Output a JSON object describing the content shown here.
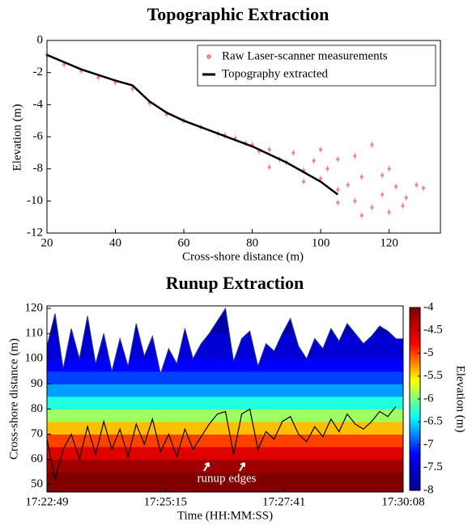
{
  "chart_data": [
    {
      "type": "line",
      "title": "Topographic Extraction",
      "xlabel": "Cross-shore distance (m)",
      "ylabel": "Elevation (m)",
      "xlim": [
        20,
        135
      ],
      "ylim": [
        -12,
        0
      ],
      "xticks": [
        20,
        40,
        60,
        80,
        100,
        120
      ],
      "yticks": [
        0,
        -2,
        -4,
        -6,
        -8,
        -10,
        -12
      ],
      "legend": "top-right",
      "series": [
        {
          "name": "Raw Laser-scanner measurements",
          "color": "#f4868a",
          "mode": "markers",
          "x": [
            20,
            25,
            30,
            35,
            40,
            45,
            50,
            55,
            60,
            65,
            70,
            72,
            75,
            78,
            80,
            82,
            85,
            88,
            90,
            92,
            95,
            98,
            100,
            100,
            102,
            105,
            105,
            108,
            110,
            110,
            112,
            115,
            115,
            118,
            120,
            120,
            122,
            125,
            128,
            130,
            85,
            95,
            105,
            112,
            118,
            124
          ],
          "values": [
            -0.9,
            -1.5,
            -1.9,
            -2.3,
            -2.6,
            -3.0,
            -3.9,
            -4.6,
            -5.0,
            -5.4,
            -5.8,
            -5.9,
            -6.1,
            -6.4,
            -6.5,
            -6.9,
            -6.8,
            -7.4,
            -7.6,
            -7.0,
            -8.1,
            -7.5,
            -8.6,
            -6.8,
            -8.0,
            -9.3,
            -7.4,
            -9.0,
            -10.0,
            -7.2,
            -8.5,
            -10.4,
            -6.5,
            -9.6,
            -10.7,
            -8.0,
            -9.1,
            -9.8,
            -9.0,
            -9.2,
            -7.9,
            -8.8,
            -10.1,
            -10.9,
            -8.4,
            -10.3
          ]
        },
        {
          "name": "Topography extracted",
          "color": "#000000",
          "mode": "line",
          "x": [
            20,
            30,
            40,
            45,
            50,
            55,
            60,
            70,
            80,
            90,
            100,
            105
          ],
          "values": [
            -0.9,
            -1.8,
            -2.5,
            -2.8,
            -3.8,
            -4.5,
            -5.0,
            -5.8,
            -6.6,
            -7.6,
            -8.8,
            -9.6
          ]
        }
      ]
    },
    {
      "type": "heatmap",
      "title": "Runup Extraction",
      "xlabel": "Time (HH:MM:SS)",
      "ylabel": "Cross-shore distance (m)",
      "annotation": "runup edges",
      "xlim": [
        62569,
        63008
      ],
      "ylim": [
        47,
        121
      ],
      "xticks": [
        {
          "value": 62569,
          "label": "17:22:49"
        },
        {
          "value": 62715,
          "label": "17:25:15"
        },
        {
          "value": 62861,
          "label": "17:27:41"
        },
        {
          "value": 63008,
          "label": "17:30:08"
        }
      ],
      "yticks": [
        50,
        60,
        70,
        80,
        90,
        100,
        110,
        120
      ],
      "colormap": [
        "#00008f",
        "#0000ff",
        "#00ffff",
        "#ffff00",
        "#ff0000",
        "#800000"
      ],
      "colorbar": {
        "label": "Elevation (m)",
        "ylim": [
          -8,
          -4
        ],
        "yticks": [
          -4,
          -4.5,
          -5,
          -5.5,
          -6,
          -6.5,
          -7,
          -7.5,
          -8
        ]
      },
      "elevation_profile": {
        "distance": [
          47,
          55,
          60,
          65,
          70,
          75,
          80,
          85,
          90,
          95,
          100,
          110,
          121
        ],
        "elevation": [
          -4,
          -4.2,
          -4.6,
          -5,
          -5.4,
          -5.9,
          -6.3,
          -6.7,
          -7,
          -7.2,
          -7.5,
          -7.8,
          -8
        ]
      },
      "x": [
        62569,
        62579,
        62589,
        62599,
        62609,
        62619,
        62629,
        62639,
        62649,
        62659,
        62669,
        62679,
        62689,
        62699,
        62709,
        62719,
        62729,
        62739,
        62749,
        62759,
        62769,
        62779,
        62789,
        62799,
        62809,
        62819,
        62829,
        62839,
        62849,
        62859,
        62869,
        62879,
        62889,
        62899,
        62909,
        62919,
        62929,
        62939,
        62949,
        62959,
        62969,
        62979,
        62989,
        62999
      ],
      "swash_max": [
        105,
        118,
        96,
        112,
        100,
        117,
        98,
        110,
        95,
        108,
        97,
        114,
        101,
        109,
        94,
        104,
        98,
        112,
        100,
        106,
        110,
        115,
        120,
        99,
        108,
        111,
        97,
        106,
        103,
        110,
        116,
        105,
        100,
        108,
        104,
        112,
        107,
        114,
        110,
        106,
        109,
        113,
        111,
        108
      ],
      "series": [
        {
          "color": "#000000",
          "values": [
            68,
            52,
            64,
            70,
            60,
            73,
            62,
            75,
            64,
            72,
            61,
            74,
            66,
            76,
            63,
            70,
            61,
            72,
            64,
            69,
            74,
            78,
            79,
            62,
            78,
            80,
            64,
            71,
            68,
            75,
            77,
            70,
            67,
            73,
            69,
            76,
            71,
            78,
            74,
            72,
            75,
            79,
            77,
            81
          ]
        }
      ]
    }
  ]
}
